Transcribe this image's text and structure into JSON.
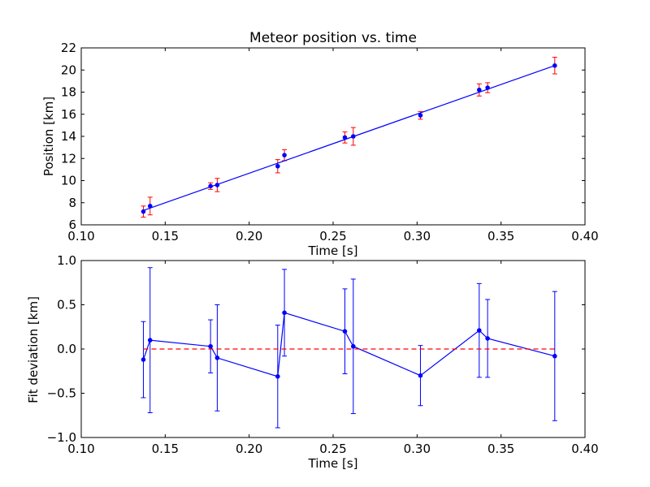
{
  "chart_data": [
    {
      "type": "scatter",
      "title": "Meteor position vs. time",
      "xlabel": "Time [s]",
      "ylabel": "Position [km]",
      "xlim": [
        0.1,
        0.4
      ],
      "ylim": [
        6,
        22
      ],
      "xticks": [
        "0.10",
        "0.15",
        "0.20",
        "0.25",
        "0.30",
        "0.35",
        "0.40"
      ],
      "yticks": [
        "6",
        "8",
        "10",
        "12",
        "14",
        "16",
        "18",
        "20",
        "22"
      ],
      "grid": false,
      "series": [
        {
          "kind": "errorbar-points",
          "color": "#ff0000",
          "x": [
            0.137,
            0.141,
            0.177,
            0.181,
            0.217,
            0.221,
            0.257,
            0.262,
            0.302,
            0.337,
            0.342,
            0.382
          ],
          "y": [
            7.2,
            7.7,
            9.5,
            9.6,
            11.3,
            12.3,
            13.9,
            14.0,
            15.9,
            18.2,
            18.4,
            20.4
          ],
          "yerr": [
            0.5,
            0.8,
            0.3,
            0.6,
            0.6,
            0.5,
            0.5,
            0.8,
            0.35,
            0.55,
            0.45,
            0.75
          ]
        },
        {
          "kind": "fit-line",
          "color": "#0000ff",
          "x": [
            0.137,
            0.382
          ],
          "y": [
            7.3,
            20.4
          ]
        }
      ]
    },
    {
      "type": "line",
      "title": "",
      "xlabel": "Time [s]",
      "ylabel": "Fit deviation [km]",
      "xlim": [
        0.1,
        0.4
      ],
      "ylim": [
        -1.0,
        1.0
      ],
      "xticks": [
        "0.10",
        "0.15",
        "0.20",
        "0.25",
        "0.30",
        "0.35",
        "0.40"
      ],
      "yticks": [
        "−1.0",
        "−0.5",
        "0.0",
        "0.5",
        "1.0"
      ],
      "ytick_values": [
        -1.0,
        -0.5,
        0.0,
        0.5,
        1.0
      ],
      "grid": false,
      "series": [
        {
          "kind": "errorbar-line",
          "color": "#0000ff",
          "x": [
            0.137,
            0.141,
            0.177,
            0.181,
            0.217,
            0.221,
            0.257,
            0.262,
            0.302,
            0.337,
            0.342,
            0.382
          ],
          "y": [
            -0.12,
            0.1,
            0.03,
            -0.1,
            -0.31,
            0.41,
            0.2,
            0.03,
            -0.3,
            0.21,
            0.12,
            -0.08
          ],
          "yerr": [
            0.43,
            0.82,
            0.3,
            0.6,
            0.58,
            0.49,
            0.48,
            0.76,
            0.34,
            0.53,
            0.44,
            0.73
          ]
        },
        {
          "kind": "zero-reference",
          "color": "#ff0000",
          "dashed": true,
          "x": [
            0.137,
            0.382
          ],
          "y": [
            0.0,
            0.0
          ]
        }
      ]
    }
  ]
}
